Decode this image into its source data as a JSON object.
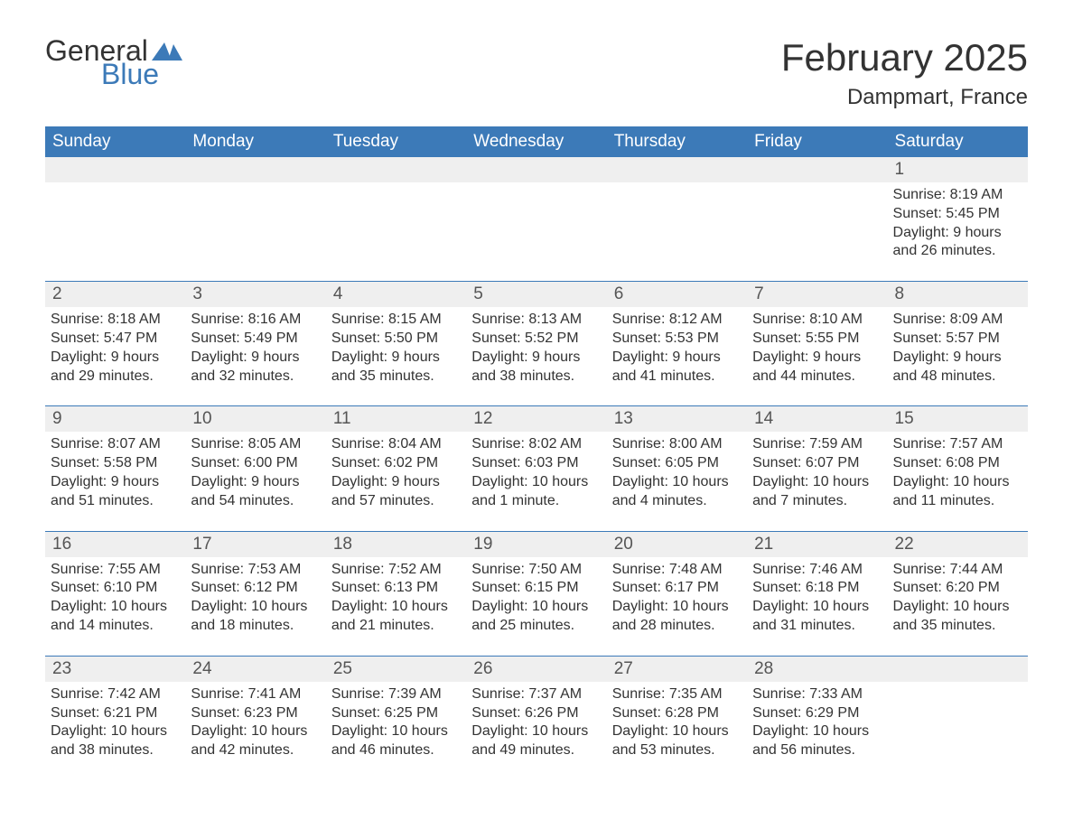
{
  "logo": {
    "text_a": "General",
    "text_b": "Blue",
    "swoosh_color": "#3c7ab8"
  },
  "title": "February 2025",
  "location": "Dampmart, France",
  "colors": {
    "header_bg": "#3c7ab8",
    "header_fg": "#ffffff",
    "daynum_bg": "#efefef",
    "row_divider": "#3c7ab8",
    "text": "#333333",
    "page_bg": "#ffffff"
  },
  "fonts": {
    "title_size_pt": 32,
    "location_size_pt": 18,
    "weekday_size_pt": 14,
    "body_size_pt": 12
  },
  "weekdays": [
    "Sunday",
    "Monday",
    "Tuesday",
    "Wednesday",
    "Thursday",
    "Friday",
    "Saturday"
  ],
  "labels": {
    "sunrise": "Sunrise: ",
    "sunset": "Sunset: ",
    "daylight": "Daylight: "
  },
  "weeks": [
    [
      {
        "blank": true
      },
      {
        "blank": true
      },
      {
        "blank": true
      },
      {
        "blank": true
      },
      {
        "blank": true
      },
      {
        "blank": true
      },
      {
        "day": "1",
        "sunrise": "8:19 AM",
        "sunset": "5:45 PM",
        "daylight": "9 hours and 26 minutes."
      }
    ],
    [
      {
        "day": "2",
        "sunrise": "8:18 AM",
        "sunset": "5:47 PM",
        "daylight": "9 hours and 29 minutes."
      },
      {
        "day": "3",
        "sunrise": "8:16 AM",
        "sunset": "5:49 PM",
        "daylight": "9 hours and 32 minutes."
      },
      {
        "day": "4",
        "sunrise": "8:15 AM",
        "sunset": "5:50 PM",
        "daylight": "9 hours and 35 minutes."
      },
      {
        "day": "5",
        "sunrise": "8:13 AM",
        "sunset": "5:52 PM",
        "daylight": "9 hours and 38 minutes."
      },
      {
        "day": "6",
        "sunrise": "8:12 AM",
        "sunset": "5:53 PM",
        "daylight": "9 hours and 41 minutes."
      },
      {
        "day": "7",
        "sunrise": "8:10 AM",
        "sunset": "5:55 PM",
        "daylight": "9 hours and 44 minutes."
      },
      {
        "day": "8",
        "sunrise": "8:09 AM",
        "sunset": "5:57 PM",
        "daylight": "9 hours and 48 minutes."
      }
    ],
    [
      {
        "day": "9",
        "sunrise": "8:07 AM",
        "sunset": "5:58 PM",
        "daylight": "9 hours and 51 minutes."
      },
      {
        "day": "10",
        "sunrise": "8:05 AM",
        "sunset": "6:00 PM",
        "daylight": "9 hours and 54 minutes."
      },
      {
        "day": "11",
        "sunrise": "8:04 AM",
        "sunset": "6:02 PM",
        "daylight": "9 hours and 57 minutes."
      },
      {
        "day": "12",
        "sunrise": "8:02 AM",
        "sunset": "6:03 PM",
        "daylight": "10 hours and 1 minute."
      },
      {
        "day": "13",
        "sunrise": "8:00 AM",
        "sunset": "6:05 PM",
        "daylight": "10 hours and 4 minutes."
      },
      {
        "day": "14",
        "sunrise": "7:59 AM",
        "sunset": "6:07 PM",
        "daylight": "10 hours and 7 minutes."
      },
      {
        "day": "15",
        "sunrise": "7:57 AM",
        "sunset": "6:08 PM",
        "daylight": "10 hours and 11 minutes."
      }
    ],
    [
      {
        "day": "16",
        "sunrise": "7:55 AM",
        "sunset": "6:10 PM",
        "daylight": "10 hours and 14 minutes."
      },
      {
        "day": "17",
        "sunrise": "7:53 AM",
        "sunset": "6:12 PM",
        "daylight": "10 hours and 18 minutes."
      },
      {
        "day": "18",
        "sunrise": "7:52 AM",
        "sunset": "6:13 PM",
        "daylight": "10 hours and 21 minutes."
      },
      {
        "day": "19",
        "sunrise": "7:50 AM",
        "sunset": "6:15 PM",
        "daylight": "10 hours and 25 minutes."
      },
      {
        "day": "20",
        "sunrise": "7:48 AM",
        "sunset": "6:17 PM",
        "daylight": "10 hours and 28 minutes."
      },
      {
        "day": "21",
        "sunrise": "7:46 AM",
        "sunset": "6:18 PM",
        "daylight": "10 hours and 31 minutes."
      },
      {
        "day": "22",
        "sunrise": "7:44 AM",
        "sunset": "6:20 PM",
        "daylight": "10 hours and 35 minutes."
      }
    ],
    [
      {
        "day": "23",
        "sunrise": "7:42 AM",
        "sunset": "6:21 PM",
        "daylight": "10 hours and 38 minutes."
      },
      {
        "day": "24",
        "sunrise": "7:41 AM",
        "sunset": "6:23 PM",
        "daylight": "10 hours and 42 minutes."
      },
      {
        "day": "25",
        "sunrise": "7:39 AM",
        "sunset": "6:25 PM",
        "daylight": "10 hours and 46 minutes."
      },
      {
        "day": "26",
        "sunrise": "7:37 AM",
        "sunset": "6:26 PM",
        "daylight": "10 hours and 49 minutes."
      },
      {
        "day": "27",
        "sunrise": "7:35 AM",
        "sunset": "6:28 PM",
        "daylight": "10 hours and 53 minutes."
      },
      {
        "day": "28",
        "sunrise": "7:33 AM",
        "sunset": "6:29 PM",
        "daylight": "10 hours and 56 minutes."
      },
      {
        "blank": true
      }
    ]
  ]
}
